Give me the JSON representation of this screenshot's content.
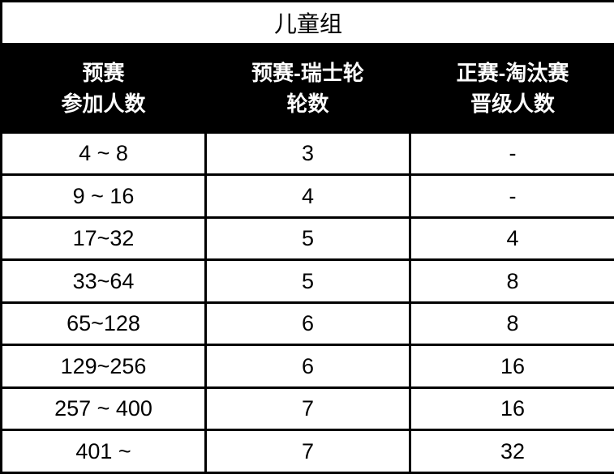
{
  "title": "儿童组",
  "headers": [
    {
      "line1": "预赛",
      "line2": "参加人数"
    },
    {
      "line1": "预赛-瑞士轮",
      "line2": "轮数"
    },
    {
      "line1": "正赛-淘汰赛",
      "line2": "晋级人数"
    }
  ],
  "rows": [
    [
      "4 ~ 8",
      "3",
      "-"
    ],
    [
      "9 ~ 16",
      "4",
      "-"
    ],
    [
      "17~32",
      "5",
      "4"
    ],
    [
      "33~64",
      "5",
      "8"
    ],
    [
      "65~128",
      "6",
      "8"
    ],
    [
      "129~256",
      "6",
      "16"
    ],
    [
      "257 ~ 400",
      "7",
      "16"
    ],
    [
      "401 ~",
      "7",
      "32"
    ]
  ]
}
